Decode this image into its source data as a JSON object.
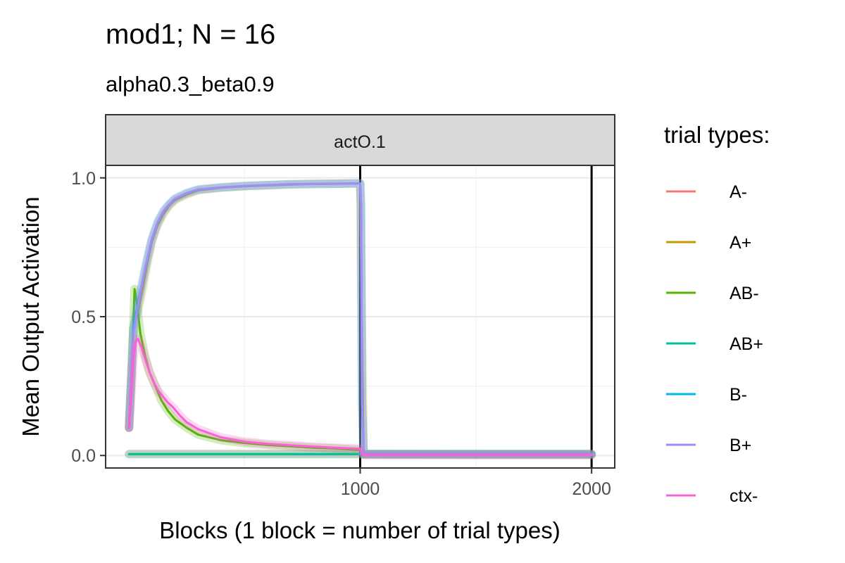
{
  "chart_data": {
    "type": "line",
    "title": "mod1; N = 16",
    "subtitle": "alpha0.3_beta0.9",
    "facet_label": "actO.1",
    "xlabel": "Blocks (1 block = number of trial types)",
    "ylabel": "Mean Output Activation",
    "xlim": [
      -100,
      2100
    ],
    "ylim": [
      -0.045,
      1.045
    ],
    "x_ticks": [
      1000,
      2000
    ],
    "x_tick_labels": [
      "1000",
      "2000"
    ],
    "y_ticks": [
      0,
      0.5,
      1
    ],
    "y_tick_labels": [
      "0.0",
      "0.5",
      "1.0"
    ],
    "x_minor_gridlines": [
      500,
      1500
    ],
    "y_minor_gridlines": [
      0.25,
      0.75
    ],
    "vlines": [
      1000,
      2000
    ],
    "grid": true,
    "legend": {
      "title": "trial types:",
      "position": "right"
    },
    "series": [
      {
        "name": "A-",
        "color": "#F8766D",
        "x": [
          1,
          1005,
          1015,
          2000
        ],
        "y": [
          0.005,
          0.005,
          0.005,
          0.005
        ]
      },
      {
        "name": "A+",
        "color": "#C49A00",
        "x": [
          1,
          20,
          40,
          60,
          80,
          100,
          125,
          150,
          175,
          200,
          250,
          300,
          400,
          500,
          600,
          700,
          800,
          900,
          990,
          1000,
          1005,
          1015,
          1500,
          2000
        ],
        "y": [
          0.1,
          0.46,
          0.52,
          0.6,
          0.69,
          0.77,
          0.83,
          0.87,
          0.9,
          0.92,
          0.94,
          0.955,
          0.965,
          0.97,
          0.973,
          0.976,
          0.978,
          0.979,
          0.98,
          0.98,
          0.6,
          0.005,
          0.005,
          0.005
        ]
      },
      {
        "name": "AB-",
        "color": "#53B400",
        "x": [
          1,
          15,
          25,
          35,
          50,
          70,
          90,
          110,
          140,
          170,
          200,
          250,
          300,
          400,
          500,
          600,
          700,
          800,
          900,
          1000,
          1005,
          1015,
          1500,
          2000
        ],
        "y": [
          0.1,
          0.35,
          0.6,
          0.55,
          0.44,
          0.36,
          0.3,
          0.26,
          0.2,
          0.16,
          0.13,
          0.1,
          0.075,
          0.055,
          0.045,
          0.038,
          0.033,
          0.028,
          0.025,
          0.02,
          0.01,
          0.003,
          0.002,
          0.002
        ]
      },
      {
        "name": "AB+",
        "color": "#00C094",
        "x": [
          1,
          1005,
          1015,
          2000
        ],
        "y": [
          0.005,
          0.005,
          0.005,
          0.005
        ]
      },
      {
        "name": "B-",
        "color": "#00B6EB",
        "x": [
          1,
          20,
          40,
          60,
          80,
          100,
          125,
          150,
          175,
          200,
          250,
          300,
          400,
          500,
          600,
          700,
          800,
          900,
          1000,
          1004,
          1008,
          1015,
          1500,
          2000
        ],
        "y": [
          0.1,
          0.46,
          0.55,
          0.63,
          0.71,
          0.78,
          0.84,
          0.88,
          0.905,
          0.925,
          0.945,
          0.958,
          0.966,
          0.971,
          0.974,
          0.977,
          0.978,
          0.979,
          0.98,
          0.9,
          0.2,
          0.006,
          0.005,
          0.005
        ]
      },
      {
        "name": "B+",
        "color": "#A58AFF",
        "x": [
          1,
          20,
          40,
          60,
          80,
          100,
          125,
          150,
          175,
          200,
          250,
          300,
          400,
          500,
          600,
          700,
          800,
          900,
          1000,
          1004,
          1008,
          1015,
          1500,
          2000
        ],
        "y": [
          0.1,
          0.44,
          0.54,
          0.63,
          0.71,
          0.78,
          0.84,
          0.88,
          0.905,
          0.925,
          0.945,
          0.958,
          0.966,
          0.971,
          0.974,
          0.977,
          0.978,
          0.979,
          0.98,
          0.9,
          0.2,
          0.005,
          0.004,
          0.004
        ]
      },
      {
        "name": "ctx-",
        "color": "#FB61D7",
        "x": [
          1,
          10,
          20,
          30,
          40,
          55,
          70,
          90,
          110,
          130,
          150,
          170,
          190,
          220,
          250,
          300,
          400,
          500,
          600,
          700,
          800,
          900,
          1000,
          1005,
          1015,
          1500,
          2000
        ],
        "y": [
          0.1,
          0.2,
          0.35,
          0.41,
          0.42,
          0.39,
          0.35,
          0.3,
          0.26,
          0.23,
          0.21,
          0.19,
          0.175,
          0.145,
          0.12,
          0.095,
          0.065,
          0.05,
          0.042,
          0.037,
          0.032,
          0.028,
          0.024,
          0.01,
          0.002,
          0.002,
          0.002
        ]
      }
    ]
  }
}
